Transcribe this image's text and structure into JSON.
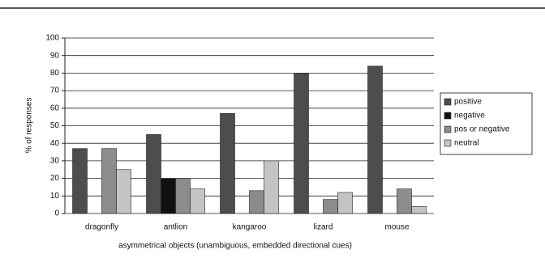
{
  "chart_data": {
    "type": "bar",
    "x_label": "asymmetrical objects (unambiguous, embedded directional cues)",
    "y_label": "% of responses",
    "categories": [
      "dragonfly",
      "antlion",
      "kangaroo",
      "lizard",
      "mouse"
    ],
    "series": [
      {
        "name": "positive",
        "color": "#4d4d4d",
        "values": [
          37,
          45,
          57,
          80,
          84
        ]
      },
      {
        "name": "negative",
        "color": "#111111",
        "values": [
          0,
          20,
          0,
          0,
          0
        ]
      },
      {
        "name": "pos or negative",
        "color": "#8c8c8c",
        "values": [
          37,
          20,
          13,
          8,
          14
        ]
      },
      {
        "name": "neutral",
        "color": "#c4c4c4",
        "values": [
          25,
          14,
          30,
          12,
          4
        ]
      }
    ],
    "ylim": [
      0,
      100
    ],
    "yticks": [
      0,
      10,
      20,
      30,
      40,
      50,
      60,
      70,
      80,
      90,
      100
    ],
    "grid": true
  }
}
